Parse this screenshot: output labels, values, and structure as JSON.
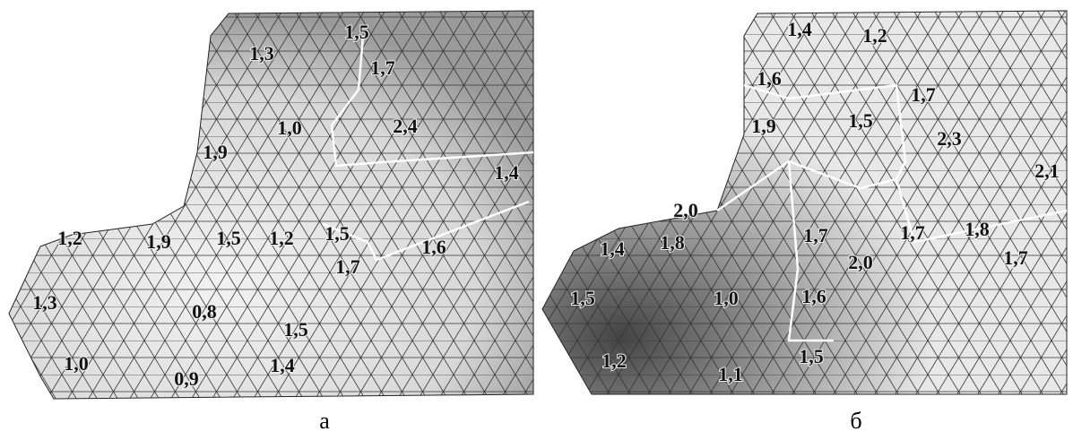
{
  "panels": [
    {
      "caption": "а",
      "labels": [
        "1,5",
        "1,3",
        "1,7",
        "1,0",
        "2,4",
        "1,9",
        "1,4",
        "1,9",
        "1,5",
        "1,2",
        "1,5",
        "1,6",
        "1,7",
        "1,2",
        "1,3",
        "0,8",
        "1,5",
        "1,0",
        "0,9",
        "1,4"
      ]
    },
    {
      "caption": "б",
      "labels": [
        "1,4",
        "1,2",
        "1,6",
        "1,7",
        "1,9",
        "1,5",
        "2,3",
        "2,1",
        "2,0",
        "1,7",
        "1,7",
        "1,8",
        "1,8",
        "2,0",
        "1,7",
        "1,4",
        "1,5",
        "1,0",
        "1,6",
        "1,5",
        "1,2",
        "1,1"
      ]
    }
  ]
}
